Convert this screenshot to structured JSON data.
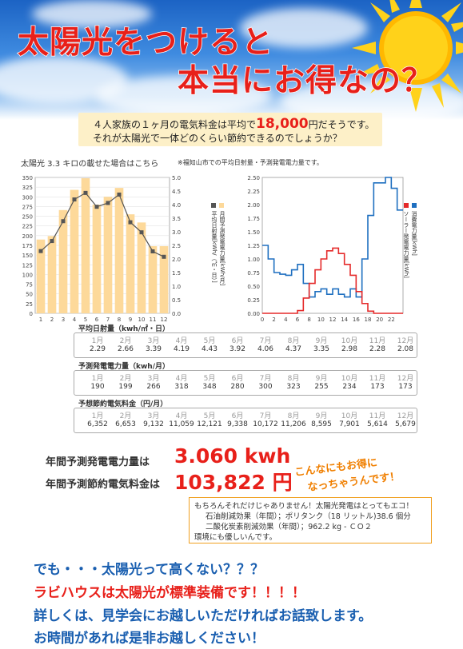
{
  "header": {
    "title_line1": "太陽光をつけると",
    "title_line2": "本当にお得なの？"
  },
  "intro": {
    "line1_pre": "４人家族の１ヶ月の電気料金は平均で",
    "line1_amount": "18,000",
    "line1_post": "円だそうです。",
    "line2": "それが太陽光で一体どのくらい節約できるのでしょうか？"
  },
  "captions": {
    "left": "太陽光 3.3 キロの載せた場合はこちら",
    "right": "※福知山市での平均日射量・予測発電電力量です。"
  },
  "chart_data": [
    {
      "type": "bar",
      "categories": [
        "1",
        "2",
        "3",
        "4",
        "5",
        "6",
        "7",
        "8",
        "9",
        "10",
        "11",
        "12"
      ],
      "series": [
        {
          "name": "月間予測発電電力量[kWh/月]",
          "type": "bar",
          "axis": "left",
          "color": "#fdd99a",
          "values": [
            190,
            199,
            266,
            318,
            348,
            280,
            300,
            323,
            255,
            234,
            173,
            173
          ]
        },
        {
          "name": "平均日射量[kWh/（㎡・日）]",
          "type": "line",
          "axis": "right",
          "color": "#555555",
          "values": [
            2.29,
            2.66,
            3.39,
            4.19,
            4.43,
            3.92,
            4.06,
            4.37,
            3.35,
            2.98,
            2.28,
            2.08
          ]
        }
      ],
      "ylim": [
        0,
        350
      ],
      "yticks": [
        "0",
        "25",
        "50",
        "75",
        "100",
        "125",
        "150",
        "175",
        "200",
        "225",
        "250",
        "275",
        "300",
        "325",
        "350"
      ],
      "y2lim": [
        0,
        5
      ],
      "y2ticks": [
        "0.0",
        "0.5",
        "1.0",
        "1.5",
        "2.0",
        "2.5",
        "3.0",
        "3.5",
        "4.0",
        "4.5",
        "5.0"
      ],
      "legend_position": "right"
    },
    {
      "type": "line",
      "x": [
        0,
        1,
        2,
        3,
        4,
        5,
        6,
        7,
        8,
        9,
        10,
        11,
        12,
        13,
        14,
        15,
        16,
        17,
        18,
        19,
        20,
        21,
        22,
        23
      ],
      "xticks": [
        "0",
        "2",
        "4",
        "6",
        "8",
        "10",
        "12",
        "14",
        "16",
        "18",
        "20",
        "22"
      ],
      "series": [
        {
          "name": "消費電力量[kWh]",
          "color": "#1e6fc0",
          "step": true,
          "values": [
            1.25,
            1.0,
            0.75,
            0.72,
            0.7,
            0.8,
            0.9,
            0.55,
            0.3,
            0.4,
            0.45,
            0.35,
            0.45,
            0.35,
            0.3,
            0.45,
            0.3,
            1.0,
            1.8,
            2.4,
            2.4,
            2.5,
            2.3,
            1.9
          ]
        },
        {
          "name": "ソーラー発電電力量[kWh]",
          "color": "#e52a2a",
          "step": true,
          "values": [
            0,
            0,
            0,
            0,
            0,
            0,
            0.05,
            0.28,
            0.55,
            0.8,
            1.0,
            1.15,
            1.2,
            1.1,
            0.9,
            0.7,
            0.4,
            0.18,
            0.04,
            0,
            0,
            0,
            0,
            0
          ]
        }
      ],
      "ylim": [
        0,
        2.5
      ],
      "yticks": [
        "0.00",
        "0.25",
        "0.50",
        "0.75",
        "1.00",
        "1.25",
        "1.50",
        "1.75",
        "2.00",
        "2.25",
        "2.50"
      ],
      "legend_position": "right"
    },
    {
      "type": "table",
      "rows": [
        {
          "title": "平均日射量（kwh/㎡・日）",
          "months": [
            "1月",
            "2月",
            "3月",
            "4月",
            "5月",
            "6月",
            "7月",
            "8月",
            "9月",
            "10月",
            "11月",
            "12月"
          ],
          "values": [
            "2.29",
            "2.66",
            "3.39",
            "4.19",
            "4.43",
            "3.92",
            "4.06",
            "4.37",
            "3.35",
            "2.98",
            "2.28",
            "2.08"
          ]
        },
        {
          "title": "予測発電電力量（kwh/月）",
          "months": [
            "1月",
            "2月",
            "3月",
            "4月",
            "5月",
            "6月",
            "7月",
            "8月",
            "9月",
            "10月",
            "11月",
            "12月"
          ],
          "values": [
            "190",
            "199",
            "266",
            "318",
            "348",
            "280",
            "300",
            "323",
            "255",
            "234",
            "173",
            "173"
          ]
        },
        {
          "title": "予想節約電気料金（円/月）",
          "months": [
            "1月",
            "2月",
            "3月",
            "4月",
            "5月",
            "6月",
            "7月",
            "8月",
            "9月",
            "10月",
            "11月",
            "12月"
          ],
          "values": [
            "6,352",
            "6,653",
            "9,132",
            "11,059",
            "12,121",
            "9,338",
            "10,172",
            "11,206",
            "8,595",
            "7,901",
            "5,614",
            "5,679"
          ]
        }
      ]
    }
  ],
  "summary": {
    "annual_power_label": "年間予測発電電力量は",
    "annual_power_value": "3.060 kwh",
    "annual_saving_label": "年間予測節約電気料金は",
    "annual_saving_value": "103,822 円",
    "promo_line1": "こんなにもお得に",
    "promo_line2": "なっちゃうんです！"
  },
  "eco": {
    "line1": "もちろんそれだけじゃありません！太陽光発電はとってもエコ！",
    "line2": "石油削減効果（年間）；ポリタンク（18 リットル)38.6 個分",
    "line3": "二酸化炭素削減効果（年間）；962.2 kg - ＣＯ２",
    "line4": "環境にも優しいんです。"
  },
  "bottom": {
    "line1": "でも・・・太陽光って高くない？？？",
    "line2": "ラビハウスは太陽光が標準装備です！！！！",
    "line3": "詳しくは、見学会にお越しいただければお話致します。",
    "line4": "お時間があれば是非お越しください！"
  },
  "colors": {
    "title_red": "#e8201a",
    "bar_fill": "#fdd99a",
    "consumption_blue": "#1e6fc0",
    "solar_red": "#e52a2a",
    "bottom_blue": "#1a5fb0",
    "promo_orange": "#f07f00",
    "intro_bg": "#fdf0c8"
  }
}
